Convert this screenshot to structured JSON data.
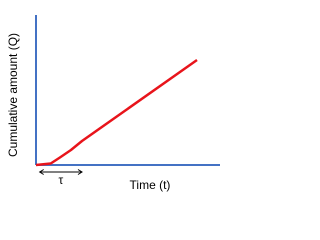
{
  "chart_data": {
    "type": "line",
    "x_label": "Time (t)",
    "y_label": "Cumulative amount (Q)",
    "x": [
      0,
      0.8,
      1.3,
      1.9,
      2.5,
      8.75
    ],
    "series": [
      {
        "color": "#e8141b",
        "values": [
          0,
          0.1,
          0.5,
          1,
          1.6,
          7
        ]
      }
    ],
    "xlim": [
      0,
      10
    ],
    "ylim": [
      0,
      10
    ],
    "axis_color": "#4472c4",
    "annotation": {
      "text": "τ",
      "x": [
        0.2,
        2.5
      ]
    }
  }
}
